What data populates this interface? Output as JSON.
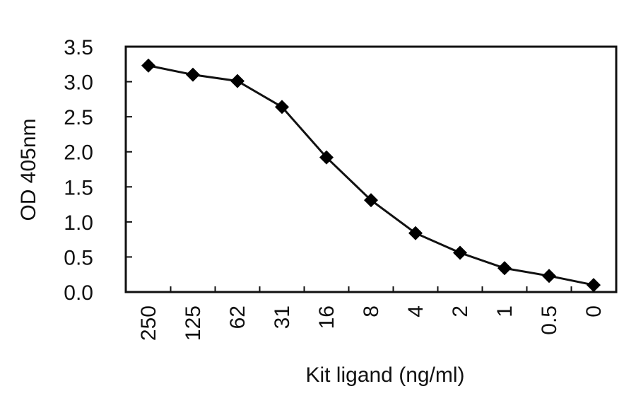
{
  "chart_data": {
    "type": "line",
    "title": "",
    "xlabel": "Kit ligand (ng/ml)",
    "ylabel": "OD 405nm",
    "categories": [
      "250",
      "125",
      "62",
      "31",
      "16",
      "8",
      "4",
      "2",
      "1",
      "0.5",
      "0"
    ],
    "series": [
      {
        "name": "Kit ligand",
        "marker": "diamond",
        "color": "#000000",
        "values": [
          3.23,
          3.1,
          3.01,
          2.64,
          1.92,
          1.31,
          0.84,
          0.56,
          0.34,
          0.23,
          0.1
        ]
      }
    ],
    "ylim": [
      0,
      3.5
    ],
    "yticks": [
      "0.0",
      "0.5",
      "1.0",
      "1.5",
      "2.0",
      "2.5",
      "3.0",
      "3.5"
    ],
    "grid": false,
    "legend": "none"
  }
}
